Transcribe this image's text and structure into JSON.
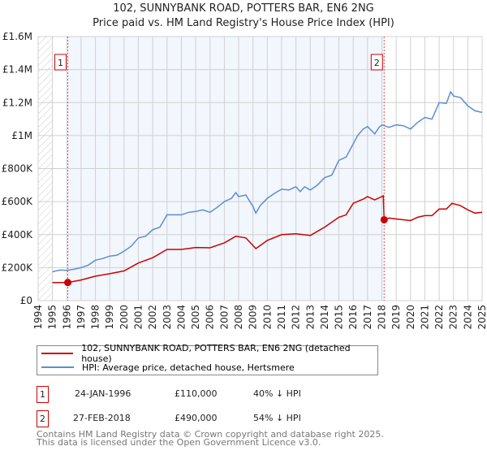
{
  "chart_data": {
    "type": "line",
    "title": "102, SUNNYBANK ROAD, POTTERS BAR, EN6 2NG",
    "subtitle": "Price paid vs. HM Land Registry's House Price Index (HPI)",
    "xlim": [
      1994,
      2025
    ],
    "ylim": [
      0,
      1600000
    ],
    "x_ticks": [
      "1994",
      "1995",
      "1996",
      "1997",
      "1998",
      "1999",
      "2000",
      "2001",
      "2002",
      "2003",
      "2004",
      "2005",
      "2006",
      "2007",
      "2008",
      "2009",
      "2010",
      "2011",
      "2012",
      "2013",
      "2014",
      "2015",
      "2016",
      "2017",
      "2018",
      "2019",
      "2020",
      "2021",
      "2022",
      "2023",
      "2024",
      "2025"
    ],
    "y_ticks": [
      {
        "v": 0,
        "label": "£0"
      },
      {
        "v": 200000,
        "label": "£200K"
      },
      {
        "v": 400000,
        "label": "£400K"
      },
      {
        "v": 600000,
        "label": "£600K"
      },
      {
        "v": 800000,
        "label": "£800K"
      },
      {
        "v": 1000000,
        "label": "£1M"
      },
      {
        "v": 1200000,
        "label": "£1.2M"
      },
      {
        "v": 1400000,
        "label": "£1.4M"
      },
      {
        "v": 1600000,
        "label": "£1.6M"
      }
    ],
    "grid": true,
    "series": [
      {
        "name": "102, SUNNYBANK ROAD, POTTERS BAR, EN6 2NG (detached house)",
        "color": "#cc0000",
        "points": [
          [
            1995,
            110
          ],
          [
            1996.07,
            110
          ],
          [
            1997,
            125
          ],
          [
            1998,
            148
          ],
          [
            1999,
            163
          ],
          [
            2000,
            180
          ],
          [
            2001,
            228
          ],
          [
            2002,
            260
          ],
          [
            2003,
            310
          ],
          [
            2004,
            310
          ],
          [
            2005,
            322
          ],
          [
            2006,
            320
          ],
          [
            2007,
            350
          ],
          [
            2007.8,
            390
          ],
          [
            2008.5,
            380
          ],
          [
            2009.2,
            315
          ],
          [
            2010,
            365
          ],
          [
            2011,
            400
          ],
          [
            2012,
            405
          ],
          [
            2013,
            395
          ],
          [
            2014,
            445
          ],
          [
            2015,
            505
          ],
          [
            2015.5,
            520
          ],
          [
            2016,
            590
          ],
          [
            2016.7,
            615
          ],
          [
            2017,
            630
          ],
          [
            2017.5,
            610
          ],
          [
            2018.1,
            635
          ],
          [
            2018.16,
            490
          ],
          [
            2018.5,
            500
          ],
          [
            2019,
            495
          ],
          [
            2020,
            485
          ],
          [
            2020.5,
            505
          ],
          [
            2021,
            515
          ],
          [
            2021.5,
            515
          ],
          [
            2022,
            555
          ],
          [
            2022.5,
            555
          ],
          [
            2022.9,
            590
          ],
          [
            2023.5,
            575
          ],
          [
            2024,
            550
          ],
          [
            2024.5,
            530
          ],
          [
            2025,
            535
          ]
        ]
      },
      {
        "name": "HPI: Average price, detached house, Hertsmere",
        "color": "#5b8fd0",
        "points": [
          [
            1995,
            175
          ],
          [
            1995.5,
            185
          ],
          [
            1996,
            183
          ],
          [
            1996.5,
            190
          ],
          [
            1997,
            200
          ],
          [
            1997.5,
            215
          ],
          [
            1998,
            245
          ],
          [
            1998.5,
            255
          ],
          [
            1999,
            270
          ],
          [
            1999.5,
            275
          ],
          [
            2000,
            300
          ],
          [
            2000.5,
            330
          ],
          [
            2001,
            380
          ],
          [
            2001.5,
            390
          ],
          [
            2002,
            430
          ],
          [
            2002.5,
            445
          ],
          [
            2003,
            520
          ],
          [
            2003.5,
            520
          ],
          [
            2004,
            520
          ],
          [
            2004.5,
            535
          ],
          [
            2005,
            540
          ],
          [
            2005.5,
            550
          ],
          [
            2006,
            535
          ],
          [
            2006.5,
            565
          ],
          [
            2007,
            600
          ],
          [
            2007.5,
            620
          ],
          [
            2007.8,
            655
          ],
          [
            2008,
            630
          ],
          [
            2008.5,
            640
          ],
          [
            2009,
            570
          ],
          [
            2009.2,
            530
          ],
          [
            2009.5,
            575
          ],
          [
            2010,
            620
          ],
          [
            2010.5,
            650
          ],
          [
            2011,
            675
          ],
          [
            2011.5,
            670
          ],
          [
            2012,
            690
          ],
          [
            2012.3,
            660
          ],
          [
            2012.6,
            690
          ],
          [
            2013,
            670
          ],
          [
            2013.5,
            700
          ],
          [
            2014,
            745
          ],
          [
            2014.5,
            760
          ],
          [
            2015,
            850
          ],
          [
            2015.5,
            870
          ],
          [
            2016,
            950
          ],
          [
            2016.3,
            1000
          ],
          [
            2016.7,
            1040
          ],
          [
            2017,
            1055
          ],
          [
            2017.5,
            1010
          ],
          [
            2017.8,
            1050
          ],
          [
            2018,
            1065
          ],
          [
            2018.5,
            1050
          ],
          [
            2019,
            1065
          ],
          [
            2019.5,
            1060
          ],
          [
            2020,
            1040
          ],
          [
            2020.5,
            1080
          ],
          [
            2021,
            1110
          ],
          [
            2021.5,
            1100
          ],
          [
            2022,
            1200
          ],
          [
            2022.5,
            1195
          ],
          [
            2022.8,
            1265
          ],
          [
            2023,
            1240
          ],
          [
            2023.5,
            1230
          ],
          [
            2024,
            1180
          ],
          [
            2024.5,
            1150
          ],
          [
            2025,
            1140
          ]
        ]
      }
    ],
    "point_units": "thousands GBP",
    "sales": [
      {
        "id": "1",
        "x": 1996.07,
        "value": 110
      },
      {
        "id": "2",
        "x": 2018.16,
        "value": 490
      }
    ],
    "shaded_range": [
      1996.07,
      2018.16
    ],
    "hatched_range": [
      1994,
      1995
    ],
    "legend_placement": "bottom"
  },
  "legend": [
    {
      "label": "102, SUNNYBANK ROAD, POTTERS BAR, EN6 2NG (detached house)",
      "color": "#cc0000"
    },
    {
      "label": "HPI: Average price, detached house, Hertsmere",
      "color": "#5b8fd0"
    }
  ],
  "transactions": [
    {
      "id": "1",
      "date": "24-JAN-1996",
      "price": "£110,000",
      "hpi": "40% ↓ HPI"
    },
    {
      "id": "2",
      "date": "27-FEB-2018",
      "price": "£490,000",
      "hpi": "54% ↓ HPI"
    }
  ],
  "footer": {
    "line1": "Contains HM Land Registry data © Crown copyright and database right 2025.",
    "line2": "This data is licensed under the Open Government Licence v3.0."
  }
}
